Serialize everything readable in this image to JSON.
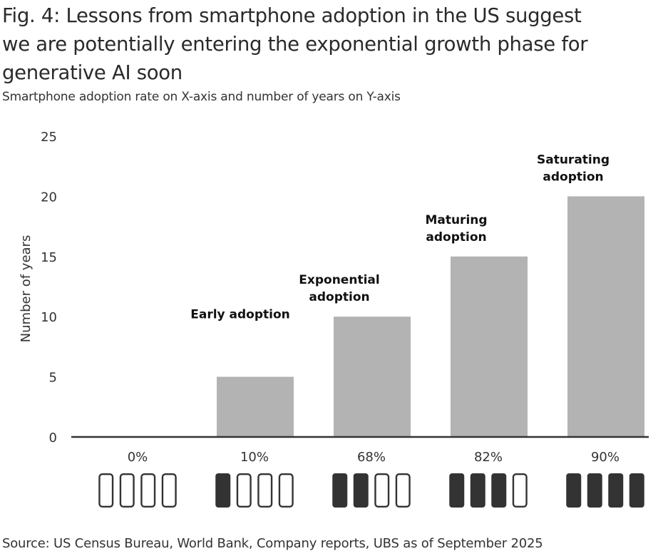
{
  "header": {
    "title_lines": [
      "Fig. 4: Lessons from smartphone adoption in the US suggest",
      "we are potentially entering the exponential growth phase for",
      "generative AI soon"
    ],
    "subtitle": "Smartphone adoption rate on X-axis and number of years on Y-axis"
  },
  "footer": {
    "source": "Source: US Census Bureau, World Bank, Company reports, UBS as of September 2025"
  },
  "colors": {
    "bar": "#b3b3b3",
    "icon_filled": "#333333",
    "icon_outline": "#333333",
    "axis": "#333333"
  },
  "chart_data": {
    "type": "bar",
    "title": "Fig. 4: Lessons from smartphone adoption in the US suggest we are potentially entering the exponential growth phase for generative AI soon",
    "subtitle": "Smartphone adoption rate on X-axis and number of years on Y-axis",
    "xlabel": "",
    "ylabel": "Number of years",
    "ylim": [
      0,
      25
    ],
    "yticks": [
      "0",
      "5",
      "10",
      "15",
      "20",
      "25"
    ],
    "categories": [
      "0%",
      "10%",
      "68%",
      "82%",
      "90%"
    ],
    "values": [
      0,
      5,
      10,
      15,
      20
    ],
    "phase_labels": [
      [],
      [
        "Early adoption"
      ],
      [
        "Exponential",
        "adoption"
      ],
      [
        "Maturing",
        "adoption"
      ],
      [
        "Saturating",
        "adoption"
      ]
    ],
    "phones_filled_of_4": [
      0,
      1,
      2,
      3,
      4
    ],
    "grid": false,
    "legend": "none"
  }
}
